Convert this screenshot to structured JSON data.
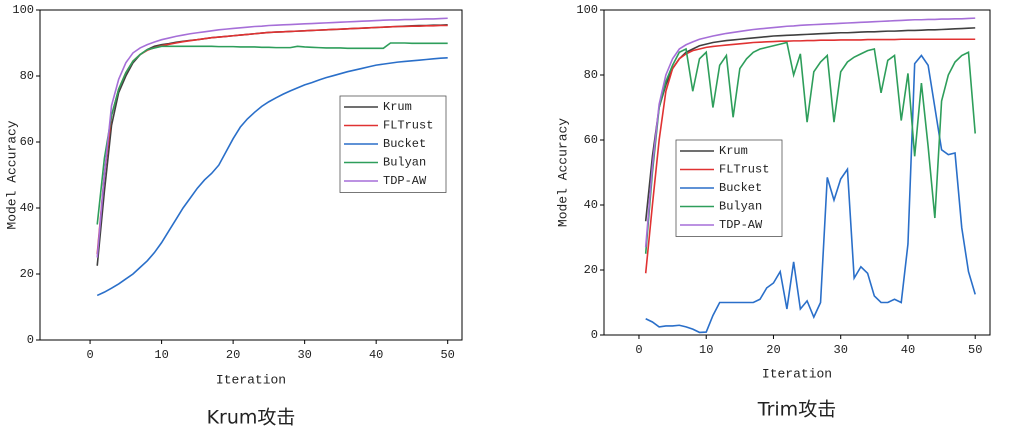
{
  "chart_data": [
    {
      "type": "line",
      "caption": "Krum攻击",
      "x_label": "Iteration",
      "y_label": "Model Accuracy",
      "x": [
        1,
        2,
        3,
        4,
        5,
        6,
        7,
        8,
        9,
        10,
        11,
        12,
        13,
        14,
        15,
        16,
        17,
        18,
        19,
        20,
        21,
        22,
        23,
        24,
        25,
        26,
        27,
        28,
        29,
        30,
        31,
        32,
        33,
        34,
        35,
        36,
        37,
        38,
        39,
        40,
        41,
        42,
        43,
        44,
        45,
        46,
        47,
        48,
        49,
        50
      ],
      "xlim": [
        -7,
        52
      ],
      "ylim": [
        0,
        100
      ],
      "xticks": [
        0,
        10,
        20,
        30,
        40,
        50
      ],
      "yticks": [
        0,
        20,
        40,
        60,
        80,
        100
      ],
      "legend_position": "right",
      "series": [
        {
          "name": "Krum",
          "color": "#404040",
          "values": [
            22.5,
            45,
            65,
            75,
            80,
            84,
            86.5,
            88,
            89,
            89.5,
            89.8,
            90.2,
            90.5,
            90.8,
            91,
            91.3,
            91.6,
            91.8,
            92,
            92.2,
            92.4,
            92.6,
            92.8,
            93,
            93.2,
            93.3,
            93.4,
            93.5,
            93.6,
            93.7,
            93.8,
            93.9,
            94,
            94.1,
            94.2,
            94.3,
            94.4,
            94.5,
            94.6,
            94.7,
            94.8,
            94.9,
            95,
            95.1,
            95.2,
            95.3,
            95.3,
            95.4,
            95.4,
            95.5
          ]
        },
        {
          "name": "FLTrust",
          "color": "#e03232",
          "values": [
            26,
            50,
            68,
            76,
            81,
            84.5,
            86.5,
            87.8,
            88.6,
            89.2,
            89.6,
            90,
            90.4,
            90.7,
            91,
            91.3,
            91.6,
            91.8,
            92,
            92.2,
            92.4,
            92.6,
            92.8,
            93,
            93.2,
            93.3,
            93.4,
            93.5,
            93.6,
            93.7,
            93.8,
            93.9,
            94,
            94.1,
            94.2,
            94.3,
            94.4,
            94.5,
            94.6,
            94.7,
            94.8,
            94.9,
            95,
            95,
            95.1,
            95.1,
            95.2,
            95.2,
            95.3,
            95.3
          ]
        },
        {
          "name": "Bucket",
          "color": "#2a6fc9",
          "values": [
            13.5,
            14.5,
            15.7,
            17,
            18.5,
            20,
            22,
            24,
            26.5,
            29.5,
            33,
            36.5,
            40,
            43,
            46,
            48.5,
            50.5,
            53,
            57,
            61,
            64.5,
            67,
            69,
            70.8,
            72.2,
            73.4,
            74.5,
            75.5,
            76.4,
            77.3,
            78,
            78.8,
            79.5,
            80.1,
            80.7,
            81.3,
            81.8,
            82.3,
            82.8,
            83.3,
            83.6,
            83.9,
            84.2,
            84.4,
            84.6,
            84.8,
            85,
            85.2,
            85.4,
            85.5
          ]
        },
        {
          "name": "Bulyan",
          "color": "#2e9e5b",
          "values": [
            35,
            55,
            68,
            76,
            81,
            84.5,
            86.5,
            88,
            88.5,
            89,
            89,
            89,
            89,
            89,
            89,
            89,
            89,
            88.9,
            88.9,
            88.9,
            88.8,
            88.8,
            88.8,
            88.7,
            88.7,
            88.6,
            88.6,
            88.6,
            89,
            88.8,
            88.7,
            88.6,
            88.5,
            88.5,
            88.5,
            88.4,
            88.4,
            88.4,
            88.4,
            88.4,
            88.4,
            90,
            90,
            90,
            89.9,
            89.9,
            89.9,
            89.9,
            89.9,
            89.9
          ]
        },
        {
          "name": "TDP-AW",
          "color": "#a66fd8",
          "values": [
            25,
            50,
            71,
            79,
            84,
            87,
            88.5,
            89.5,
            90.3,
            91,
            91.5,
            92,
            92.4,
            92.8,
            93.1,
            93.4,
            93.7,
            94,
            94.2,
            94.4,
            94.6,
            94.8,
            95,
            95.1,
            95.3,
            95.4,
            95.5,
            95.6,
            95.7,
            95.8,
            95.9,
            96,
            96.1,
            96.2,
            96.3,
            96.4,
            96.5,
            96.6,
            96.7,
            96.8,
            96.9,
            97,
            97,
            97.1,
            97.1,
            97.2,
            97.3,
            97.3,
            97.4,
            97.5
          ]
        }
      ]
    },
    {
      "type": "line",
      "caption": "Trim攻击",
      "x_label": "Iteration",
      "y_label": "Model Accuracy",
      "x": [
        1,
        2,
        3,
        4,
        5,
        6,
        7,
        8,
        9,
        10,
        11,
        12,
        13,
        14,
        15,
        16,
        17,
        18,
        19,
        20,
        21,
        22,
        23,
        24,
        25,
        26,
        27,
        28,
        29,
        30,
        31,
        32,
        33,
        34,
        35,
        36,
        37,
        38,
        39,
        40,
        41,
        42,
        43,
        44,
        45,
        46,
        47,
        48,
        49,
        50
      ],
      "xlim": [
        -5.2,
        52.2
      ],
      "ylim": [
        0,
        100
      ],
      "xticks": [
        0,
        10,
        20,
        30,
        40,
        50
      ],
      "yticks": [
        0,
        20,
        40,
        60,
        80,
        100
      ],
      "legend_position": "left",
      "series": [
        {
          "name": "Krum",
          "color": "#404040",
          "values": [
            35,
            55,
            70,
            77,
            82,
            85,
            87,
            88,
            89,
            89.5,
            90,
            90.3,
            90.6,
            90.8,
            91,
            91.2,
            91.4,
            91.6,
            91.8,
            92,
            92.1,
            92.2,
            92.3,
            92.4,
            92.5,
            92.6,
            92.7,
            92.8,
            92.9,
            93,
            93,
            93.1,
            93.2,
            93.3,
            93.3,
            93.4,
            93.5,
            93.5,
            93.6,
            93.7,
            93.7,
            93.8,
            93.9,
            93.9,
            94,
            94.1,
            94.2,
            94.3,
            94.4,
            94.5
          ]
        },
        {
          "name": "FLTrust",
          "color": "#e03232",
          "values": [
            19,
            40,
            60,
            75,
            82,
            85,
            86.5,
            87.5,
            88,
            88.5,
            88.8,
            89,
            89.2,
            89.4,
            89.6,
            89.8,
            90,
            90.1,
            90.2,
            90.3,
            90.4,
            90.4,
            90.5,
            90.5,
            90.6,
            90.6,
            90.7,
            90.7,
            90.7,
            90.8,
            90.8,
            90.8,
            90.8,
            90.9,
            90.9,
            90.9,
            90.9,
            90.9,
            91,
            91,
            91,
            91,
            91,
            91,
            91,
            91,
            91,
            91,
            91,
            91
          ]
        },
        {
          "name": "Bucket",
          "color": "#2a6fc9",
          "values": [
            5,
            4,
            2.5,
            2.8,
            2.8,
            3,
            2.5,
            1.8,
            0.8,
            0.9,
            6,
            10,
            10,
            10,
            10,
            10,
            10,
            11,
            14.5,
            16,
            19.5,
            8,
            22.5,
            8,
            10.5,
            5.5,
            10,
            48.5,
            41.5,
            48,
            51,
            17.5,
            21,
            19,
            12,
            10,
            10,
            11,
            10,
            28,
            83.5,
            86,
            83,
            70,
            57,
            55.5,
            56,
            33,
            19.5,
            12.5
          ]
        },
        {
          "name": "Bulyan",
          "color": "#2e9e5b",
          "values": [
            25,
            50,
            70,
            78,
            83,
            87,
            88,
            75,
            85,
            87,
            70,
            83,
            86,
            67,
            82,
            85,
            87,
            88,
            88.5,
            89,
            89.5,
            90,
            80,
            86.5,
            65.5,
            81,
            84,
            86,
            65.5,
            81,
            84,
            85.5,
            86.5,
            87.5,
            88,
            74.5,
            84.5,
            86,
            66,
            80.5,
            55,
            77.5,
            58,
            36,
            72,
            80,
            84,
            86,
            87,
            62
          ]
        },
        {
          "name": "TDP-AW",
          "color": "#a66fd8",
          "values": [
            27,
            52,
            71,
            80,
            85,
            88,
            89.3,
            90.2,
            91,
            91.5,
            92,
            92.4,
            92.8,
            93.1,
            93.4,
            93.7,
            94,
            94.2,
            94.4,
            94.6,
            94.8,
            95,
            95.1,
            95.3,
            95.4,
            95.5,
            95.6,
            95.7,
            95.8,
            95.9,
            96,
            96.1,
            96.2,
            96.3,
            96.4,
            96.5,
            96.6,
            96.7,
            96.8,
            96.9,
            97,
            97,
            97.1,
            97.1,
            97.2,
            97.2,
            97.3,
            97.3,
            97.4,
            97.5
          ]
        }
      ]
    }
  ]
}
